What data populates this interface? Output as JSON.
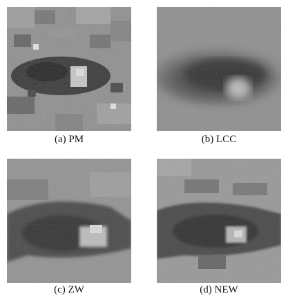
{
  "figure": {
    "panels": [
      {
        "id": "a",
        "caption": "(a) PM",
        "method": "PM"
      },
      {
        "id": "b",
        "caption": "(b) LCC",
        "method": "LCC"
      },
      {
        "id": "c",
        "caption": "(c) ZW",
        "method": "ZW"
      },
      {
        "id": "d",
        "caption": "(d) NEW",
        "method": "NEW"
      }
    ]
  },
  "colors": {
    "background": "#ffffff",
    "skin": "#8c8c8c",
    "eye_dark": "#1e1e1e",
    "highlight": "#d2d2d2"
  }
}
